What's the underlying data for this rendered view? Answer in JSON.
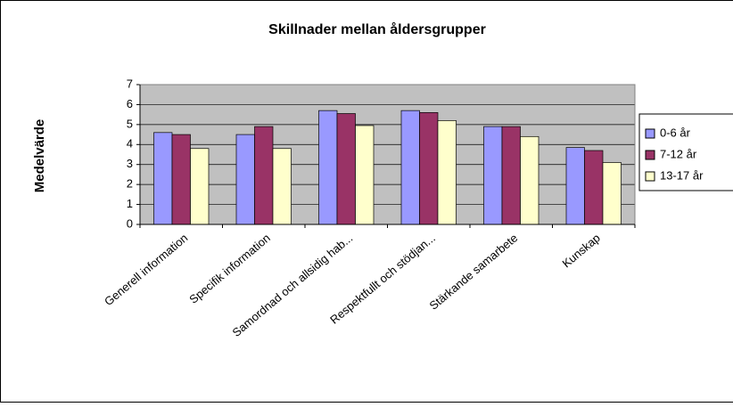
{
  "chart_data": {
    "type": "bar",
    "title": "Skillnader mellan åldersgrupper",
    "y_label": "Medelvärde",
    "categories": [
      "Generell information",
      "Specifik information",
      "Samordnad och allsidig hab...",
      "Respektfullt  och stödjan...",
      "Stärkande samarbete",
      "Kunskap"
    ],
    "series": [
      {
        "name": "0-6 år",
        "color": "#9999ff",
        "values": [
          4.6,
          4.5,
          5.7,
          5.7,
          4.9,
          3.85
        ]
      },
      {
        "name": "7-12 år",
        "color": "#993366",
        "values": [
          4.5,
          4.9,
          5.55,
          5.6,
          4.9,
          3.7
        ]
      },
      {
        "name": "13-17 år",
        "color": "#ffffcc",
        "values": [
          3.8,
          3.8,
          4.95,
          5.2,
          4.4,
          3.1
        ]
      }
    ],
    "ylim": [
      0,
      7
    ],
    "yticks": [
      0,
      1,
      2,
      3,
      4,
      5,
      6,
      7
    ],
    "grid": true,
    "legend": "right"
  }
}
